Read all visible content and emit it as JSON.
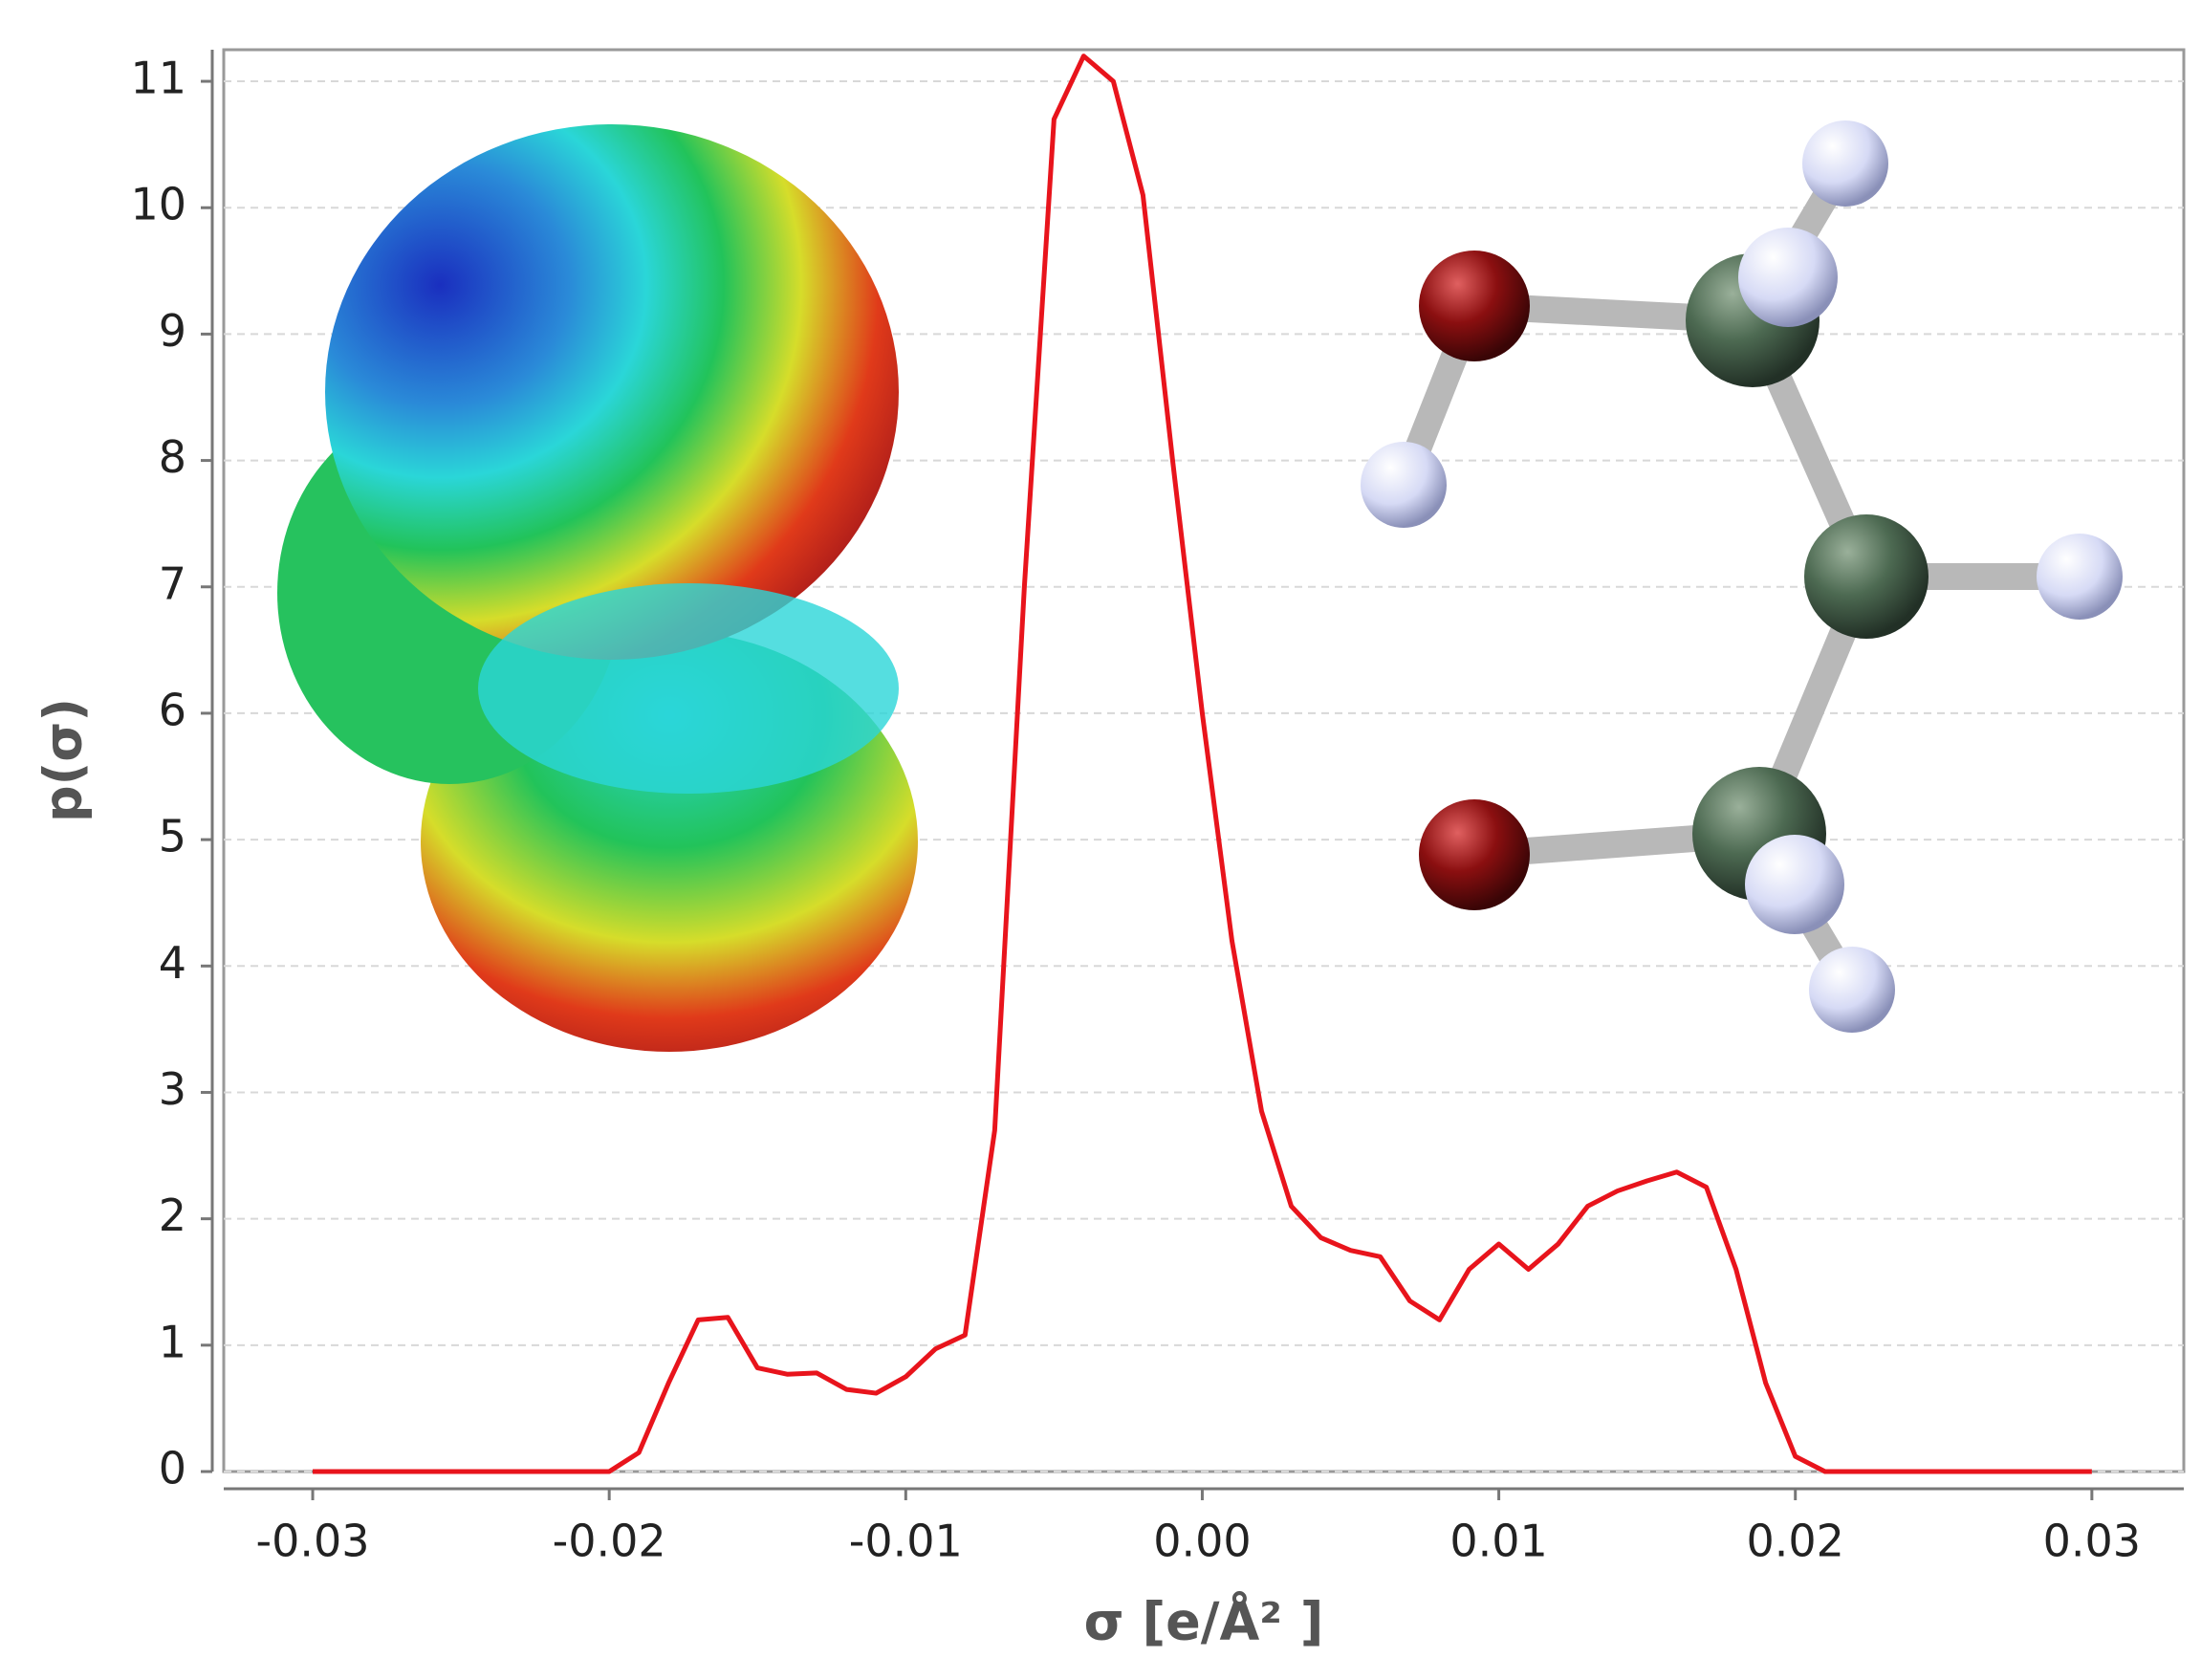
{
  "chart_data": {
    "type": "line",
    "x_label": "σ [e/Å² ]",
    "y_label": "p(σ)",
    "x": [
      -0.03,
      -0.029,
      -0.028,
      -0.027,
      -0.026,
      -0.025,
      -0.024,
      -0.023,
      -0.022,
      -0.021,
      -0.02,
      -0.019,
      -0.018,
      -0.017,
      -0.016,
      -0.015,
      -0.014,
      -0.013,
      -0.012,
      -0.011,
      -0.01,
      -0.009,
      -0.008,
      -0.007,
      -0.006,
      -0.005,
      -0.004,
      -0.003,
      -0.002,
      -0.001,
      0.0,
      0.001,
      0.002,
      0.003,
      0.004,
      0.005,
      0.006,
      0.007,
      0.008,
      0.009,
      0.01,
      0.011,
      0.012,
      0.013,
      0.014,
      0.015,
      0.016,
      0.017,
      0.018,
      0.019,
      0.02,
      0.021,
      0.022,
      0.023,
      0.024,
      0.025,
      0.026,
      0.027,
      0.028,
      0.029,
      0.03
    ],
    "series": [
      {
        "color": "#e8141c",
        "values": [
          0,
          0,
          0,
          0,
          0,
          0,
          0,
          0,
          0,
          0,
          0,
          0.15,
          0.7,
          1.2,
          1.22,
          0.82,
          0.77,
          0.78,
          0.65,
          0.62,
          0.75,
          0.97,
          1.08,
          2.7,
          7.0,
          10.7,
          11.2,
          11.0,
          10.1,
          8.0,
          6.0,
          4.2,
          2.85,
          2.1,
          1.85,
          1.75,
          1.7,
          1.35,
          1.2,
          1.6,
          1.8,
          1.6,
          1.8,
          2.1,
          2.22,
          2.3,
          2.37,
          2.25,
          1.6,
          0.7,
          0.12,
          0,
          0,
          0,
          0,
          0,
          0,
          0,
          0,
          0,
          0
        ]
      }
    ],
    "xlim": [
      -0.033,
      0.0331
    ],
    "ylim": [
      0,
      11.25
    ],
    "xticks": [
      -0.03,
      -0.02,
      -0.01,
      {
        "value": 0,
        "label": "0.00"
      },
      0.01,
      0.02,
      0.03
    ],
    "yticks": [
      0,
      1,
      2,
      3,
      4,
      5,
      6,
      7,
      8,
      9,
      10,
      11
    ],
    "grid": true
  }
}
